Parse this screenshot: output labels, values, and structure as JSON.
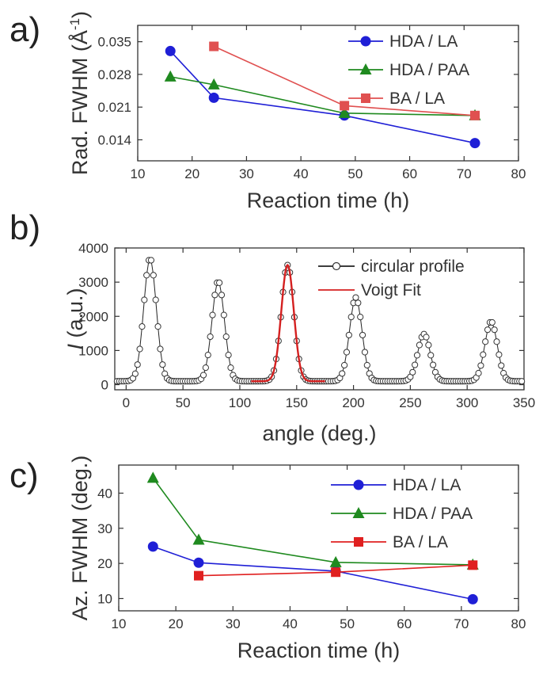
{
  "chart_data": [
    {
      "id": "a",
      "panel_label": "a)",
      "type": "line",
      "xlabel": "Reaction time (h)",
      "ylabel_prefix": "Rad. FWHM (Å",
      "ylabel_sup": "-1",
      "ylabel_suffix": ")",
      "xlim": [
        10,
        80
      ],
      "ylim": [
        0.0095,
        0.0385
      ],
      "xticks": [
        10,
        20,
        30,
        40,
        50,
        60,
        70,
        80
      ],
      "yticks": [
        0.014,
        0.021,
        0.028,
        0.035
      ],
      "ytick_labels": [
        "0.014",
        "0.021",
        "0.028",
        "0.035"
      ],
      "grid": false,
      "legend_position": "top-right",
      "series": [
        {
          "name": "HDA / LA",
          "color": "#1f1fd6",
          "marker": "circle",
          "x": [
            16,
            24,
            48,
            72
          ],
          "y": [
            0.033,
            0.023,
            0.0192,
            0.0133
          ]
        },
        {
          "name": "HDA / PAA",
          "color": "#1f8a1f",
          "marker": "triangle",
          "x": [
            16,
            24,
            48,
            72
          ],
          "y": [
            0.0275,
            0.0258,
            0.0197,
            0.0192
          ]
        },
        {
          "name": "BA / LA",
          "color": "#e05050",
          "marker": "square",
          "x": [
            24,
            48,
            72
          ],
          "y": [
            0.034,
            0.0213,
            0.0192
          ]
        }
      ]
    },
    {
      "id": "b",
      "panel_label": "b)",
      "type": "scatter",
      "xlabel": "angle (deg.)",
      "ylabel_italic": "I",
      "ylabel_rest": " (a.u.)",
      "xlim": [
        -10,
        350
      ],
      "ylim": [
        -150,
        4000
      ],
      "xticks": [
        0,
        50,
        100,
        150,
        200,
        250,
        300,
        350
      ],
      "yticks": [
        0,
        1000,
        2000,
        3000,
        4000
      ],
      "grid": false,
      "legend_position": "top-right",
      "peaks": [
        {
          "center": 21,
          "height": 3700
        },
        {
          "center": 81,
          "height": 3030
        },
        {
          "center": 142,
          "height": 3500
        },
        {
          "center": 202,
          "height": 2550
        },
        {
          "center": 262,
          "height": 1480
        },
        {
          "center": 321,
          "height": 1850
        }
      ],
      "baseline": 100,
      "peak_width": 5.5,
      "sample_step": 2,
      "series": [
        {
          "name": "circular profile",
          "color": "#222222",
          "marker": "open-circle"
        },
        {
          "name": "Voigt Fit",
          "color": "#d42020",
          "marker": "line",
          "fit_range": [
            110,
            175
          ],
          "fit_center": 142,
          "fit_height": 3500
        }
      ]
    },
    {
      "id": "c",
      "panel_label": "c)",
      "type": "line",
      "xlabel": "Reaction time (h)",
      "ylabel": "Az. FWHM (deg.)",
      "xlim": [
        10,
        80
      ],
      "ylim": [
        6.5,
        48
      ],
      "xticks": [
        10,
        20,
        30,
        40,
        50,
        60,
        70,
        80
      ],
      "yticks": [
        10,
        20,
        30,
        40
      ],
      "grid": false,
      "legend_position": "top-right",
      "series": [
        {
          "name": "HDA / LA",
          "color": "#1f1fd6",
          "marker": "circle",
          "x": [
            16,
            24,
            48,
            72
          ],
          "y": [
            24.8,
            20.2,
            17.8,
            9.8
          ]
        },
        {
          "name": "HDA / PAA",
          "color": "#1f8a1f",
          "marker": "triangle",
          "x": [
            16,
            24,
            48,
            72
          ],
          "y": [
            44.3,
            26.7,
            20.3,
            19.6
          ]
        },
        {
          "name": "BA / LA",
          "color": "#e02020",
          "marker": "square",
          "x": [
            24,
            48,
            72
          ],
          "y": [
            16.5,
            17.5,
            19.5
          ]
        }
      ]
    }
  ]
}
